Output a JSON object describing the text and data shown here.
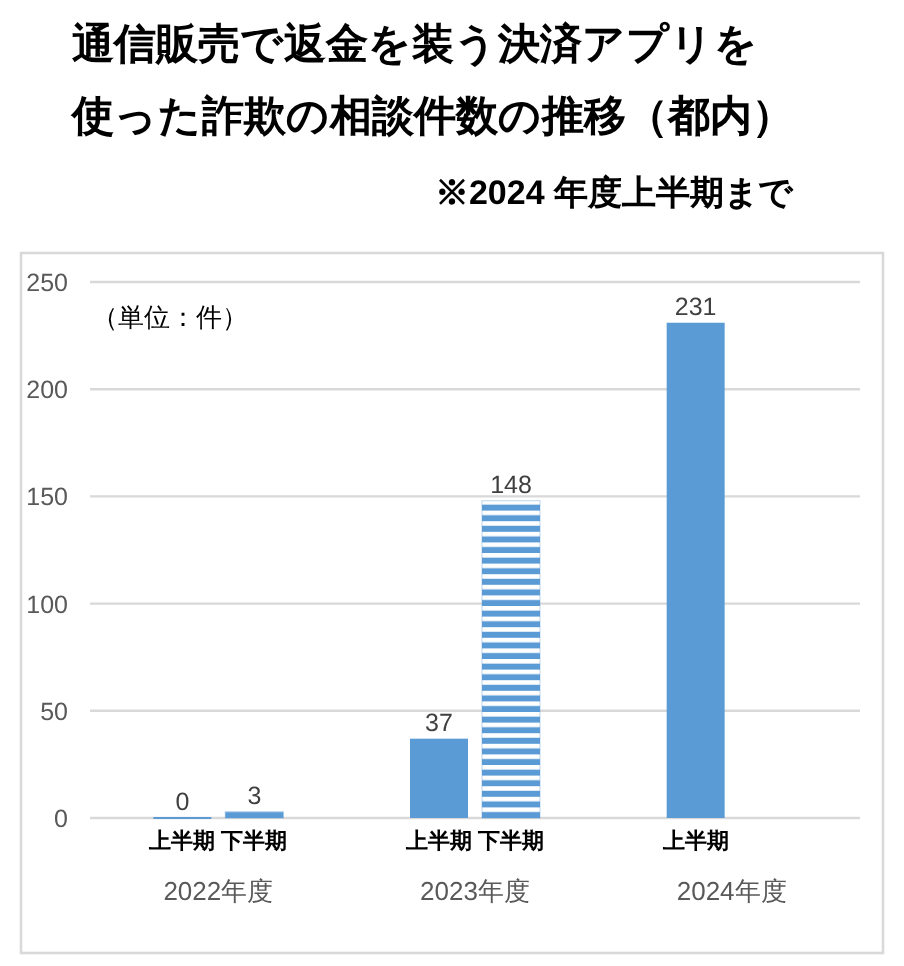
{
  "chart_data": {
    "type": "bar",
    "title": "通信販売で返金を装う決済アプリを使った詐欺の相談件数の推移（都内）",
    "subtitle": "※2024 年度上半期まで",
    "annotations": [
      "（単位：件）"
    ],
    "categories": [
      "2022年度",
      "2023年度",
      "2024年度"
    ],
    "series": [
      {
        "name": "上半期",
        "color": "#5b9bd5",
        "values": [
          0,
          37,
          231
        ]
      },
      {
        "name": "下半期",
        "color": "#5b9bd5",
        "values": [
          3,
          148,
          null
        ]
      }
    ],
    "ylim": [
      0,
      250
    ],
    "yticks": [
      0,
      50,
      100,
      150,
      200,
      250
    ],
    "grid": "y",
    "data_labels": true
  }
}
